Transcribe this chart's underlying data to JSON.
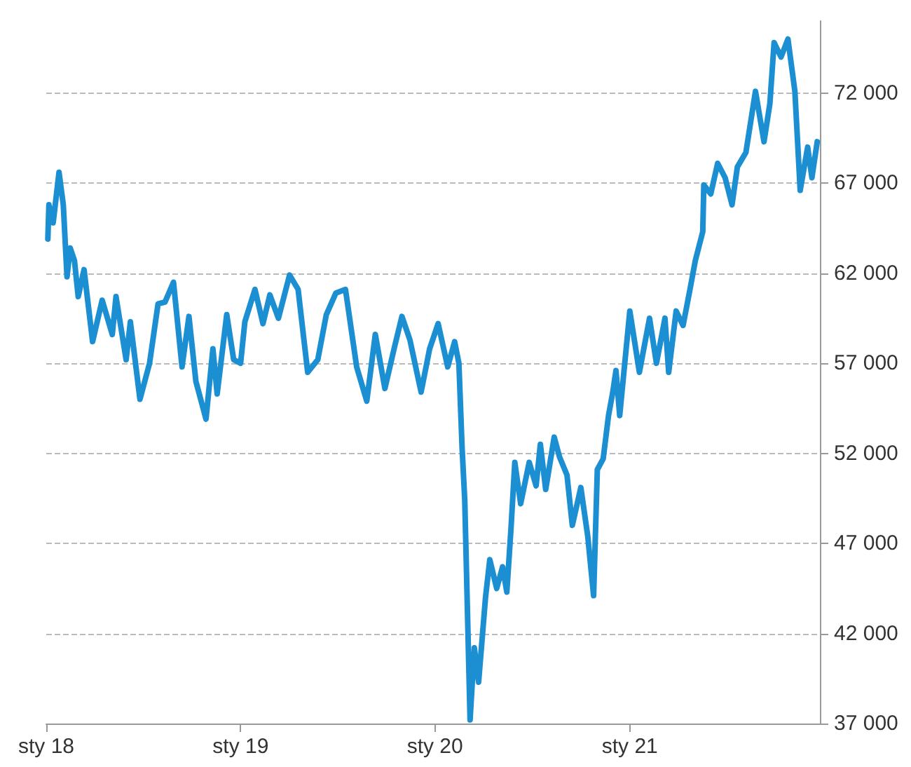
{
  "chart_data": {
    "type": "line",
    "marker": "none",
    "line_style": "solid",
    "grid": "y",
    "x": [
      "2018-01-04",
      "2018-01-06",
      "2018-01-14",
      "2018-01-25",
      "2018-02-02",
      "2018-02-09",
      "2018-02-15",
      "2018-02-23",
      "2018-03-02",
      "2018-03-13",
      "2018-03-29",
      "2018-04-16",
      "2018-05-05",
      "2018-05-12",
      "2018-05-31",
      "2018-06-08",
      "2018-06-26",
      "2018-07-14",
      "2018-07-30",
      "2018-08-12",
      "2018-08-28",
      "2018-09-13",
      "2018-09-26",
      "2018-10-09",
      "2018-10-28",
      "2018-11-10",
      "2018-11-18",
      "2018-12-06",
      "2018-12-19",
      "2019-01-01",
      "2019-01-09",
      "2019-01-28",
      "2019-02-12",
      "2019-02-25",
      "2019-03-13",
      "2019-04-03",
      "2019-04-19",
      "2019-05-07",
      "2019-05-26",
      "2019-06-11",
      "2019-06-29",
      "2019-07-17",
      "2019-08-07",
      "2019-08-26",
      "2019-09-11",
      "2019-09-29",
      "2019-10-17",
      "2019-10-31",
      "2019-11-15",
      "2019-12-06",
      "2019-12-22",
      "2020-01-07",
      "2020-01-25",
      "2020-02-07",
      "2020-02-15",
      "2020-02-21",
      "2020-02-26",
      "2020-03-07",
      "2020-03-15",
      "2020-03-23",
      "2020-04-05",
      "2020-04-13",
      "2020-04-26",
      "2020-05-07",
      "2020-05-15",
      "2020-05-23",
      "2020-05-30",
      "2020-06-10",
      "2020-06-26",
      "2020-07-09",
      "2020-07-17",
      "2020-07-27",
      "2020-08-12",
      "2020-08-22",
      "2020-09-05",
      "2020-09-15",
      "2020-10-01",
      "2020-10-14",
      "2020-10-25",
      "2020-11-01",
      "2020-11-12",
      "2020-11-17",
      "2020-11-22",
      "2020-11-30",
      "2020-12-06",
      "2020-12-13",
      "2021-01-01",
      "2021-01-19",
      "2021-02-07",
      "2021-02-20",
      "2021-03-08",
      "2021-03-15",
      "2021-03-29",
      "2021-04-11",
      "2021-04-24",
      "2021-05-04",
      "2021-05-18",
      "2021-05-20",
      "2021-06-02",
      "2021-06-15",
      "2021-06-29",
      "2021-07-12",
      "2021-07-22",
      "2021-08-07",
      "2021-08-25",
      "2021-09-10",
      "2021-09-21",
      "2021-09-29",
      "2021-10-12",
      "2021-10-25",
      "2021-11-07",
      "2021-11-17",
      "2021-12-01",
      "2021-12-09",
      "2021-12-19"
    ],
    "series": [
      {
        "color": "#1b8fd2",
        "values": [
          63900,
          65800,
          64800,
          67600,
          65800,
          61800,
          63400,
          62700,
          60700,
          62200,
          58200,
          60500,
          58600,
          60700,
          57200,
          59300,
          55000,
          57000,
          60300,
          60400,
          61500,
          56800,
          59600,
          56000,
          53900,
          57800,
          55300,
          59700,
          57200,
          57000,
          59300,
          61100,
          59200,
          60800,
          59500,
          61900,
          61100,
          56500,
          57200,
          59700,
          60900,
          61100,
          56800,
          54900,
          58600,
          55600,
          57900,
          59600,
          58300,
          55400,
          57800,
          59200,
          56800,
          58200,
          57000,
          52300,
          49400,
          37200,
          41200,
          39300,
          44000,
          46100,
          44500,
          45700,
          44300,
          47900,
          51500,
          49200,
          51500,
          50200,
          52500,
          50000,
          52900,
          51800,
          50800,
          48000,
          50100,
          47400,
          44100,
          51100,
          51700,
          52900,
          54100,
          55400,
          56600,
          54100,
          59900,
          56500,
          59500,
          57000,
          59500,
          56500,
          59900,
          59100,
          61100,
          62700,
          64300,
          66900,
          66400,
          68100,
          67300,
          65800,
          67900,
          68700,
          72100,
          69300,
          71400,
          74800,
          74000,
          75000,
          72100,
          66600,
          69000,
          67300,
          69300
        ]
      }
    ],
    "xlim": [
      "2018-01-01",
      "2021-12-24"
    ],
    "xticks": [
      {
        "value": "2018-01-01",
        "label": "sty 18"
      },
      {
        "value": "2019-01-01",
        "label": "sty 19"
      },
      {
        "value": "2020-01-01",
        "label": "sty 20"
      },
      {
        "value": "2021-01-01",
        "label": "sty 21"
      }
    ],
    "ylim": [
      37000,
      76000
    ],
    "yticks": [
      {
        "value": 37000,
        "label": "37 000"
      },
      {
        "value": 42000,
        "label": "42 000"
      },
      {
        "value": 47000,
        "label": "47 000"
      },
      {
        "value": 52000,
        "label": "52 000"
      },
      {
        "value": 57000,
        "label": "57 000"
      },
      {
        "value": 62000,
        "label": "62 000"
      },
      {
        "value": 67000,
        "label": "67 000"
      },
      {
        "value": 72000,
        "label": "72 000"
      }
    ]
  }
}
